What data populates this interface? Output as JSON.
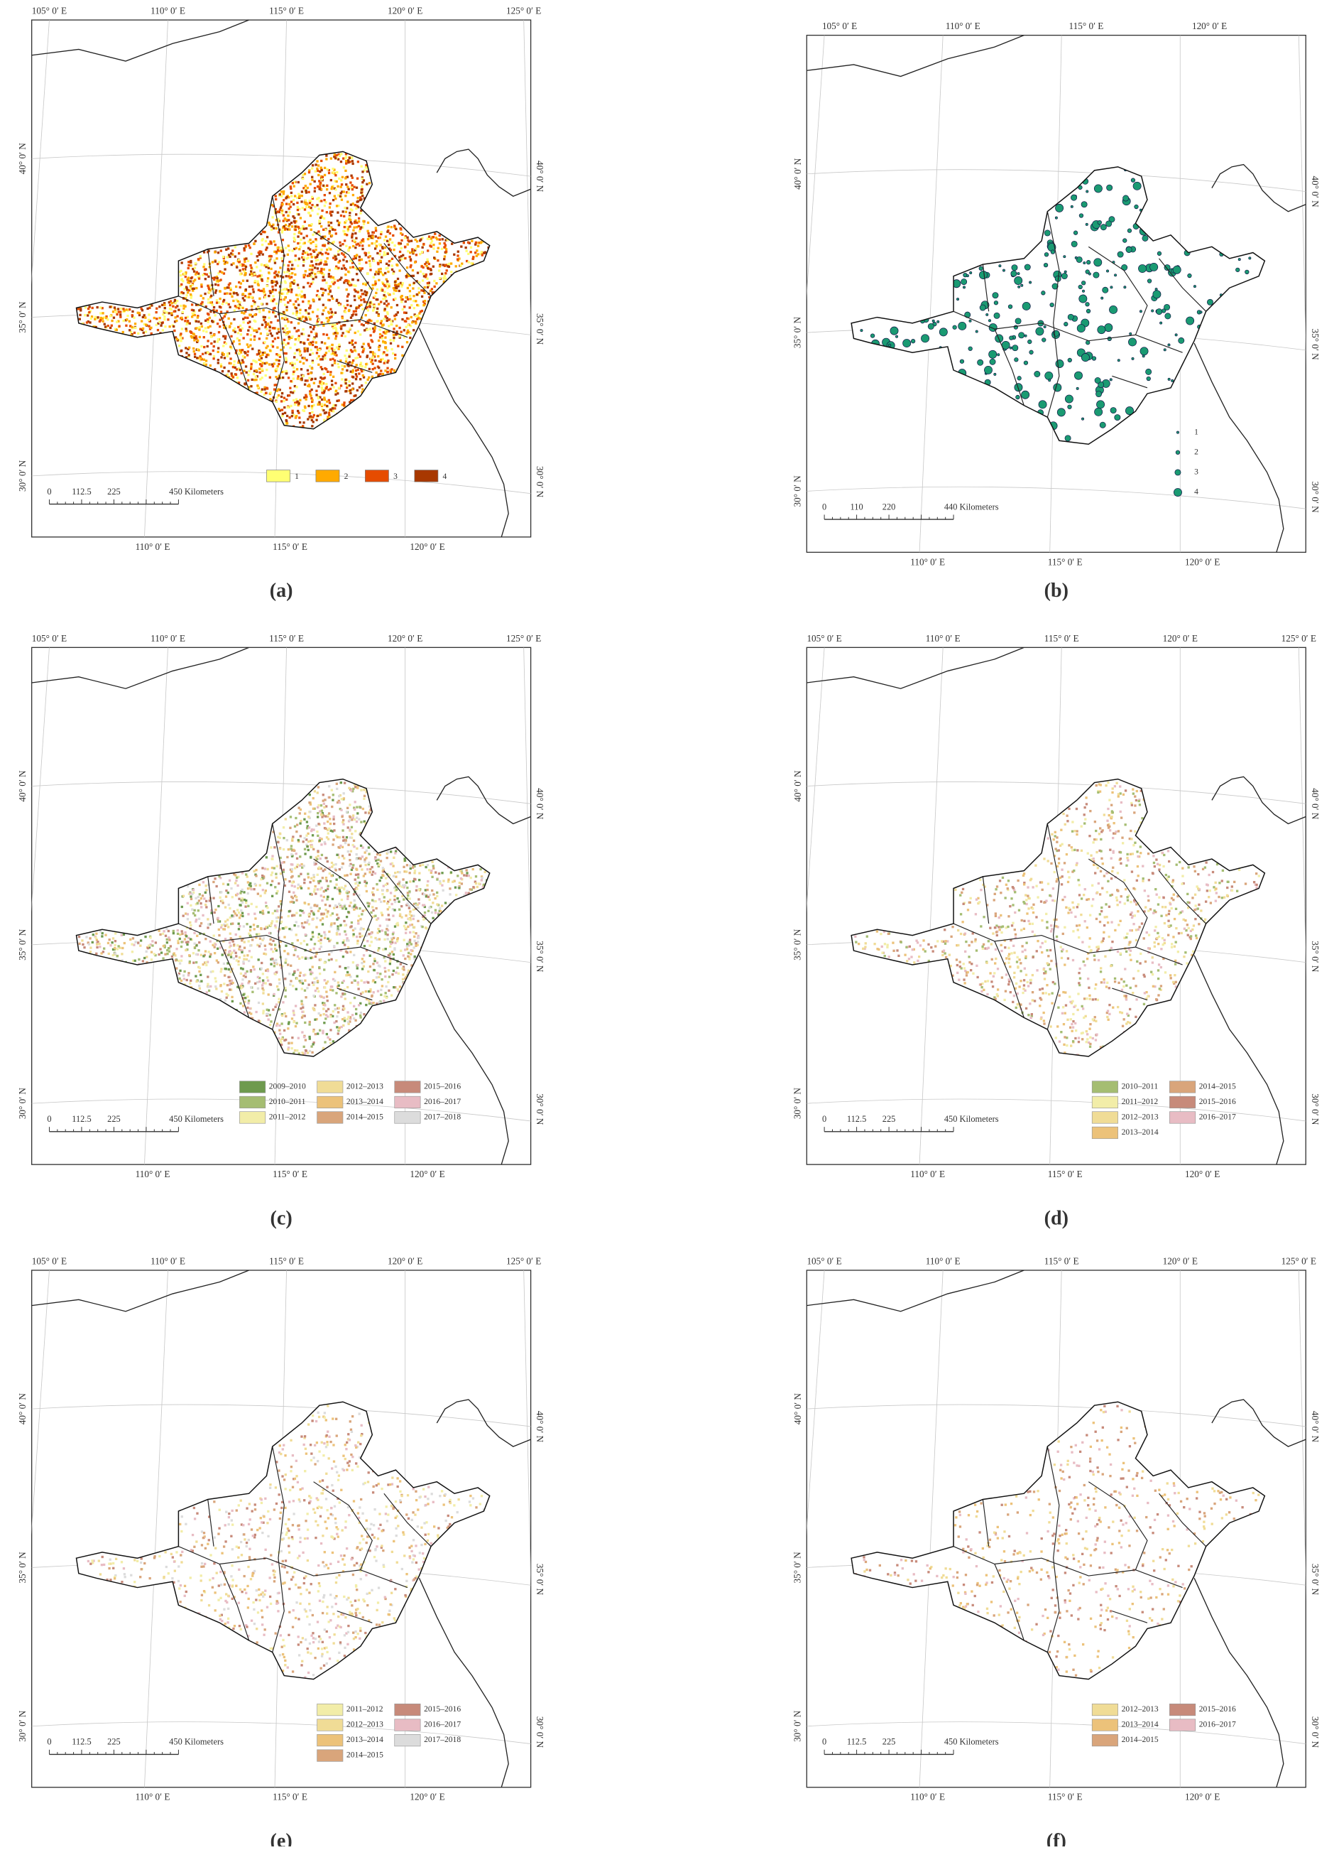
{
  "panels": [
    {
      "caption": "(a)",
      "top_labels": [
        "105° 0′ E",
        "110° 0′ E",
        "115° 0′ E",
        "120° 0′ E",
        "125° 0′ E"
      ],
      "bottom_labels": [
        "110° 0′ E",
        "115° 0′ E",
        "120° 0′ E"
      ],
      "left_labels": [
        "40° 0′ N",
        "35° 0′ N",
        "30° 0′ N"
      ],
      "right_labels": [
        "40° 0′ N",
        "35° 0′ N",
        "30° 0′ N"
      ],
      "scale_labels": [
        "0",
        "112.5",
        "225",
        "450 Kilometers"
      ],
      "legend_style": "boxes",
      "legend": [
        {
          "label": "1",
          "color": "#ffff73"
        },
        {
          "label": "2",
          "color": "#ffaa00"
        },
        {
          "label": "3",
          "color": "#e64c00"
        },
        {
          "label": "4",
          "color": "#a83800"
        }
      ]
    },
    {
      "caption": "(b)",
      "top_labels": [
        "105° 0′ E",
        "110° 0′ E",
        "115° 0′ E",
        "120° 0′ E"
      ],
      "bottom_labels": [
        "110° 0′ E",
        "115° 0′ E",
        "120° 0′ E"
      ],
      "left_labels": [
        "40° 0′ N",
        "35° 0′ N",
        "30° 0′ N"
      ],
      "right_labels": [
        "40° 0′ N",
        "35° 0′ N",
        "30° 0′ N"
      ],
      "scale_labels": [
        "0",
        "110",
        "220",
        "440 Kilometers"
      ],
      "legend_style": "circles",
      "legend": [
        {
          "label": "1",
          "color": "#1a9a72"
        },
        {
          "label": "2",
          "color": "#1a9a72"
        },
        {
          "label": "3",
          "color": "#1a9a72"
        },
        {
          "label": "4",
          "color": "#1a9a72"
        }
      ]
    },
    {
      "caption": "(c)",
      "top_labels": [
        "105° 0′ E",
        "110° 0′ E",
        "115° 0′ E",
        "120° 0′ E",
        "125° 0′ E"
      ],
      "bottom_labels": [
        "110° 0′ E",
        "115° 0′ E",
        "120° 0′ E"
      ],
      "left_labels": [
        "40° 0′ N",
        "35° 0′ N",
        "30° 0′ N"
      ],
      "right_labels": [
        "40° 0′ N",
        "35° 0′ N",
        "30° 0′ N"
      ],
      "scale_labels": [
        "0",
        "112.5",
        "225",
        "450 Kilometers"
      ],
      "legend_style": "grid",
      "legend": [
        {
          "label": "2009–2010",
          "color": "#6e9a4e"
        },
        {
          "label": "2010–2011",
          "color": "#a5bd72"
        },
        {
          "label": "2011–2012",
          "color": "#f2eda8"
        },
        {
          "label": "2012–2013",
          "color": "#f0dc96"
        },
        {
          "label": "2013–2014",
          "color": "#ecc27a"
        },
        {
          "label": "2014–2015",
          "color": "#d9a57b"
        },
        {
          "label": "2015–2016",
          "color": "#c78a7a"
        },
        {
          "label": "2016–2017",
          "color": "#e8bcc4"
        },
        {
          "label": "2017–2018",
          "color": "#dcdcdc"
        }
      ]
    },
    {
      "caption": "(d)",
      "top_labels": [
        "105° 0′ E",
        "110° 0′ E",
        "115° 0′ E",
        "120° 0′ E",
        "125° 0′ E"
      ],
      "bottom_labels": [
        "110° 0′ E",
        "115° 0′ E",
        "120° 0′ E"
      ],
      "left_labels": [
        "40° 0′ N",
        "35° 0′ N",
        "30° 0′ N"
      ],
      "right_labels": [
        "40° 0′ N",
        "35° 0′ N",
        "30° 0′ N"
      ],
      "scale_labels": [
        "0",
        "112.5",
        "225",
        "450 Kilometers"
      ],
      "legend_style": "grid",
      "legend": [
        {
          "label": "2010–2011",
          "color": "#a5bd72"
        },
        {
          "label": "2011–2012",
          "color": "#f2eda8"
        },
        {
          "label": "2012–2013",
          "color": "#f0dc96"
        },
        {
          "label": "2013–2014",
          "color": "#ecc27a"
        },
        {
          "label": "2014–2015",
          "color": "#d9a57b"
        },
        {
          "label": "2015–2016",
          "color": "#c78a7a"
        },
        {
          "label": "2016–2017",
          "color": "#e8bcc4"
        }
      ]
    },
    {
      "caption": "(e)",
      "top_labels": [
        "105° 0′ E",
        "110° 0′ E",
        "115° 0′ E",
        "120° 0′ E",
        "125° 0′ E"
      ],
      "bottom_labels": [
        "110° 0′ E",
        "115° 0′ E",
        "120° 0′ E"
      ],
      "left_labels": [
        "40° 0′ N",
        "35° 0′ N",
        "30° 0′ N"
      ],
      "right_labels": [
        "40° 0′ N",
        "35° 0′ N",
        "30° 0′ N"
      ],
      "scale_labels": [
        "0",
        "112.5",
        "225",
        "450 Kilometers"
      ],
      "legend_style": "grid",
      "legend": [
        {
          "label": "2011–2012",
          "color": "#f2eda8"
        },
        {
          "label": "2012–2013",
          "color": "#f0dc96"
        },
        {
          "label": "2013–2014",
          "color": "#ecc27a"
        },
        {
          "label": "2014–2015",
          "color": "#d9a57b"
        },
        {
          "label": "2015–2016",
          "color": "#c78a7a"
        },
        {
          "label": "2016–2017",
          "color": "#e8bcc4"
        },
        {
          "label": "2017–2018",
          "color": "#dcdcdc"
        }
      ]
    },
    {
      "caption": "(f)",
      "top_labels": [
        "105° 0′ E",
        "110° 0′ E",
        "115° 0′ E",
        "120° 0′ E",
        "125° 0′ E"
      ],
      "bottom_labels": [
        "110° 0′ E",
        "115° 0′ E",
        "120° 0′ E"
      ],
      "left_labels": [
        "40° 0′ N",
        "35° 0′ N",
        "30° 0′ N"
      ],
      "right_labels": [
        "40° 0′ N",
        "35° 0′ N",
        "30° 0′ N"
      ],
      "scale_labels": [
        "0",
        "112.5",
        "225",
        "450 Kilometers"
      ],
      "legend_style": "grid",
      "legend": [
        {
          "label": "2012–2013",
          "color": "#f0dc96"
        },
        {
          "label": "2013–2014",
          "color": "#ecc27a"
        },
        {
          "label": "2014–2015",
          "color": "#d9a57b"
        },
        {
          "label": "2015–2016",
          "color": "#c78a7a"
        },
        {
          "label": "2016–2017",
          "color": "#e8bcc4"
        }
      ]
    }
  ]
}
